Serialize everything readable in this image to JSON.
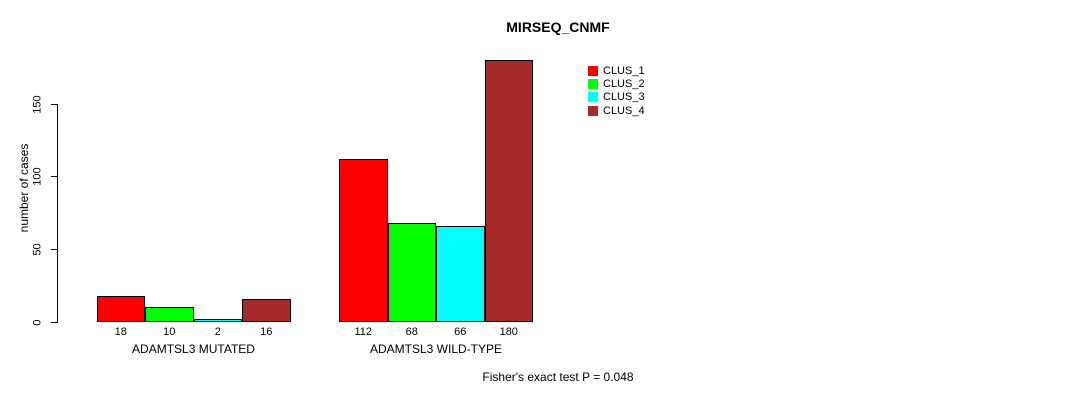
{
  "chart_data": {
    "type": "bar",
    "title": "MIRSEQ_CNMF",
    "xlabel": "",
    "ylabel": "number of cases",
    "ylim": [
      0,
      180
    ],
    "yticks": [
      0,
      50,
      100,
      150
    ],
    "grid": false,
    "legend_position": "top-right",
    "bar_value_labels": true,
    "annotation": "Fisher's exact test P = 0.048",
    "categories": [
      "ADAMTSL3 MUTATED",
      "ADAMTSL3 WILD-TYPE"
    ],
    "series": [
      {
        "name": "CLUS_1",
        "color": "#FF0000",
        "values": [
          18,
          112
        ]
      },
      {
        "name": "CLUS_2",
        "color": "#00FF00",
        "values": [
          10,
          68
        ]
      },
      {
        "name": "CLUS_3",
        "color": "#00FFFF",
        "values": [
          2,
          66
        ]
      },
      {
        "name": "CLUS_4",
        "color": "#A52A2A",
        "values": [
          16,
          180
        ]
      }
    ],
    "colors": {
      "axis": "#000000",
      "text": "#000000",
      "background": "#FFFFFF"
    }
  }
}
